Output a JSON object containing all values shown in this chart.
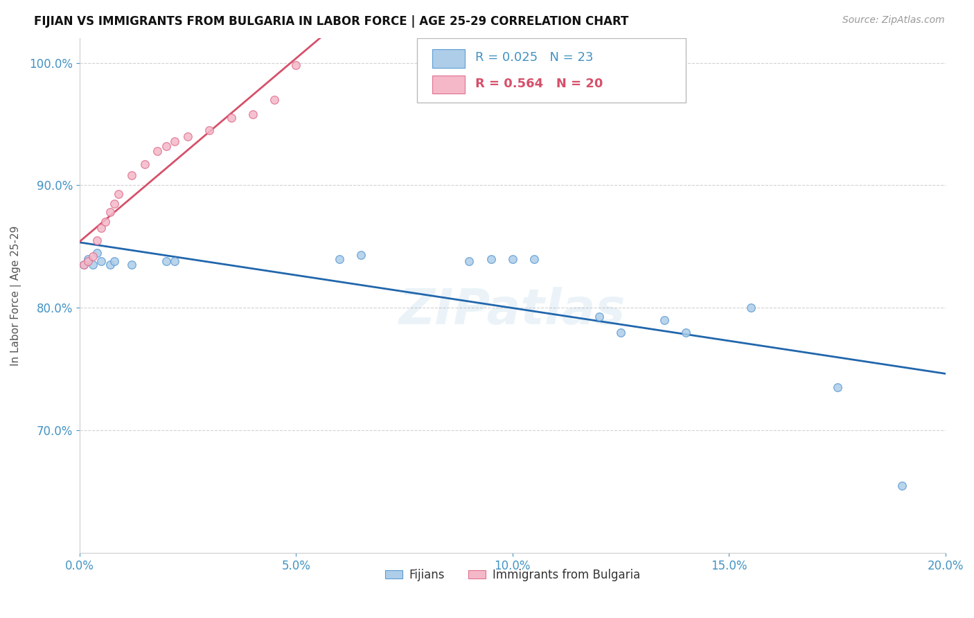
{
  "title": "FIJIAN VS IMMIGRANTS FROM BULGARIA IN LABOR FORCE | AGE 25-29 CORRELATION CHART",
  "source": "Source: ZipAtlas.com",
  "ylabel": "In Labor Force | Age 25-29",
  "xlim": [
    0.0,
    0.2
  ],
  "ylim": [
    0.6,
    1.02
  ],
  "yticks": [
    0.7,
    0.8,
    0.9,
    1.0
  ],
  "xticks": [
    0.0,
    0.05,
    0.1,
    0.15,
    0.2
  ],
  "fijians_x": [
    0.001,
    0.002,
    0.003,
    0.004,
    0.005,
    0.007,
    0.008,
    0.012,
    0.02,
    0.022,
    0.06,
    0.065,
    0.09,
    0.095,
    0.1,
    0.105,
    0.12,
    0.125,
    0.135,
    0.14,
    0.155,
    0.175,
    0.19
  ],
  "fijians_y": [
    0.835,
    0.84,
    0.835,
    0.845,
    0.838,
    0.835,
    0.838,
    0.835,
    0.838,
    0.838,
    0.84,
    0.843,
    0.838,
    0.84,
    0.84,
    0.84,
    0.793,
    0.78,
    0.79,
    0.78,
    0.8,
    0.735,
    0.655
  ],
  "bulgaria_x": [
    0.001,
    0.002,
    0.003,
    0.004,
    0.005,
    0.006,
    0.007,
    0.008,
    0.009,
    0.012,
    0.015,
    0.018,
    0.02,
    0.022,
    0.025,
    0.03,
    0.035,
    0.04,
    0.045,
    0.05
  ],
  "bulgaria_y": [
    0.835,
    0.838,
    0.842,
    0.855,
    0.865,
    0.87,
    0.878,
    0.885,
    0.893,
    0.908,
    0.917,
    0.928,
    0.932,
    0.936,
    0.94,
    0.945,
    0.955,
    0.958,
    0.97,
    0.998
  ],
  "fijians_R": 0.025,
  "fijians_N": 23,
  "bulgaria_R": 0.564,
  "bulgaria_N": 20,
  "blue_color": "#aecde8",
  "pink_color": "#f4b8c8",
  "blue_edge_color": "#5b9bd5",
  "pink_edge_color": "#e07090",
  "blue_line_color": "#2166ac",
  "pink_line_color": "#d6506a",
  "grid_color": "#cccccc",
  "background_color": "#ffffff",
  "marker_size": 70,
  "watermark": "ZIPatlas"
}
